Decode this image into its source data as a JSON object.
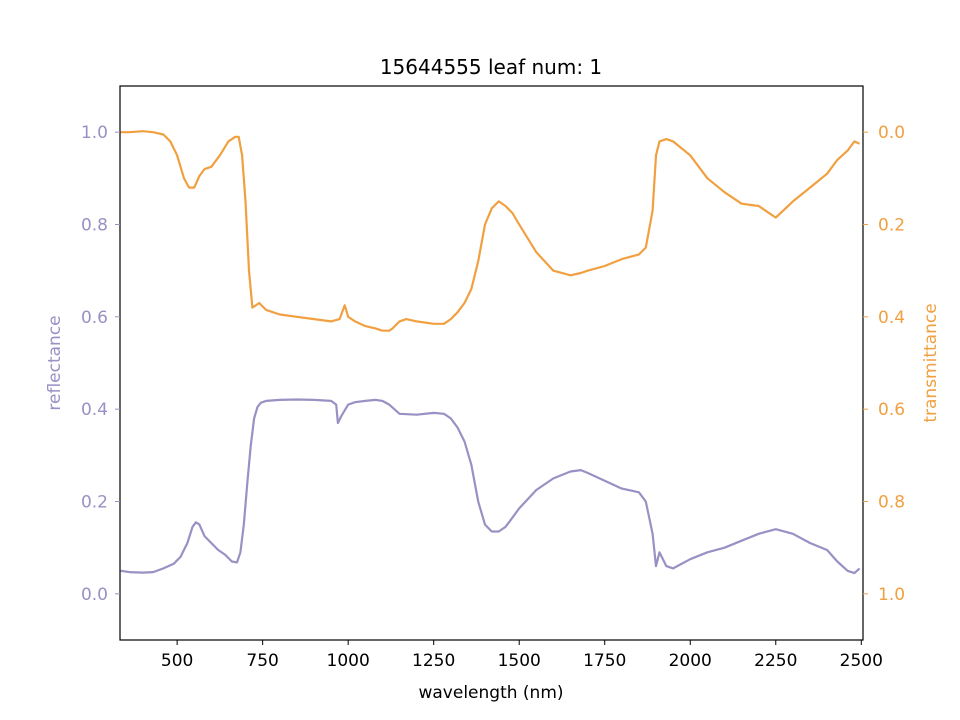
{
  "chart_data": {
    "type": "line",
    "title": "15644555 leaf num: 1",
    "xlabel": "wavelength (nm)",
    "ylabel_left": "reflectance",
    "ylabel_right": "transmittance",
    "xlim": [
      333,
      2505
    ],
    "ylim_left": [
      -0.1,
      1.1
    ],
    "ylim_right": [
      1.1,
      -0.1
    ],
    "right_axis_inverted": true,
    "grid": false,
    "x_ticks": [
      "500",
      "750",
      "1000",
      "1250",
      "1500",
      "1750",
      "2000",
      "2250",
      "2500"
    ],
    "y_left_ticks": [
      "0.0",
      "0.2",
      "0.4",
      "0.6",
      "0.8",
      "1.0"
    ],
    "y_right_ticks": [
      "0.0",
      "0.2",
      "0.4",
      "0.6",
      "0.8",
      "1.0"
    ],
    "colors": {
      "reflectance": "#9a90c4",
      "transmittance": "#f0a040"
    },
    "series": [
      {
        "name": "reflectance",
        "axis": "left",
        "x": [
          335,
          360,
          400,
          430,
          460,
          490,
          510,
          530,
          545,
          555,
          565,
          580,
          600,
          620,
          640,
          660,
          675,
          685,
          695,
          705,
          715,
          725,
          735,
          745,
          760,
          800,
          850,
          900,
          950,
          965,
          970,
          980,
          1000,
          1020,
          1050,
          1080,
          1100,
          1120,
          1150,
          1200,
          1250,
          1280,
          1300,
          1320,
          1340,
          1360,
          1380,
          1400,
          1420,
          1440,
          1460,
          1480,
          1500,
          1550,
          1600,
          1650,
          1680,
          1700,
          1750,
          1800,
          1850,
          1870,
          1890,
          1900,
          1910,
          1930,
          1950,
          2000,
          2050,
          2100,
          2150,
          2200,
          2250,
          2300,
          2350,
          2400,
          2430,
          2460,
          2480,
          2495
        ],
        "y": [
          0.05,
          0.047,
          0.046,
          0.047,
          0.055,
          0.065,
          0.08,
          0.11,
          0.145,
          0.155,
          0.15,
          0.125,
          0.11,
          0.095,
          0.085,
          0.07,
          0.068,
          0.09,
          0.15,
          0.24,
          0.32,
          0.38,
          0.405,
          0.414,
          0.418,
          0.42,
          0.421,
          0.42,
          0.418,
          0.41,
          0.37,
          0.385,
          0.41,
          0.415,
          0.418,
          0.42,
          0.418,
          0.41,
          0.39,
          0.388,
          0.392,
          0.39,
          0.38,
          0.36,
          0.33,
          0.28,
          0.2,
          0.15,
          0.135,
          0.135,
          0.145,
          0.165,
          0.185,
          0.225,
          0.25,
          0.265,
          0.268,
          0.262,
          0.245,
          0.228,
          0.22,
          0.2,
          0.13,
          0.06,
          0.09,
          0.06,
          0.055,
          0.075,
          0.09,
          0.1,
          0.115,
          0.13,
          0.14,
          0.13,
          0.11,
          0.095,
          0.07,
          0.05,
          0.045,
          0.055
        ]
      },
      {
        "name": "transmittance",
        "axis": "right",
        "x": [
          335,
          360,
          400,
          430,
          460,
          480,
          500,
          520,
          535,
          550,
          565,
          580,
          600,
          625,
          650,
          670,
          680,
          690,
          700,
          710,
          720,
          740,
          760,
          800,
          850,
          900,
          950,
          975,
          990,
          1000,
          1020,
          1050,
          1080,
          1100,
          1120,
          1130,
          1150,
          1170,
          1200,
          1250,
          1280,
          1300,
          1320,
          1340,
          1360,
          1380,
          1400,
          1420,
          1440,
          1460,
          1480,
          1500,
          1550,
          1600,
          1650,
          1680,
          1700,
          1750,
          1800,
          1850,
          1870,
          1890,
          1900,
          1910,
          1930,
          1950,
          2000,
          2050,
          2100,
          2150,
          2200,
          2250,
          2300,
          2350,
          2400,
          2430,
          2460,
          2480,
          2495
        ],
        "y": [
          0.0,
          0.0,
          -0.002,
          0.0,
          0.005,
          0.02,
          0.05,
          0.1,
          0.12,
          0.12,
          0.095,
          0.08,
          0.075,
          0.05,
          0.02,
          0.01,
          0.01,
          0.05,
          0.15,
          0.3,
          0.38,
          0.37,
          0.385,
          0.395,
          0.4,
          0.405,
          0.41,
          0.405,
          0.375,
          0.4,
          0.41,
          0.42,
          0.425,
          0.43,
          0.43,
          0.425,
          0.41,
          0.405,
          0.41,
          0.415,
          0.415,
          0.405,
          0.39,
          0.37,
          0.34,
          0.28,
          0.2,
          0.165,
          0.15,
          0.16,
          0.175,
          0.2,
          0.26,
          0.3,
          0.31,
          0.305,
          0.3,
          0.29,
          0.275,
          0.265,
          0.25,
          0.17,
          0.05,
          0.02,
          0.015,
          0.02,
          0.05,
          0.1,
          0.13,
          0.155,
          0.16,
          0.185,
          0.15,
          0.12,
          0.09,
          0.06,
          0.04,
          0.02,
          0.025
        ]
      }
    ]
  }
}
